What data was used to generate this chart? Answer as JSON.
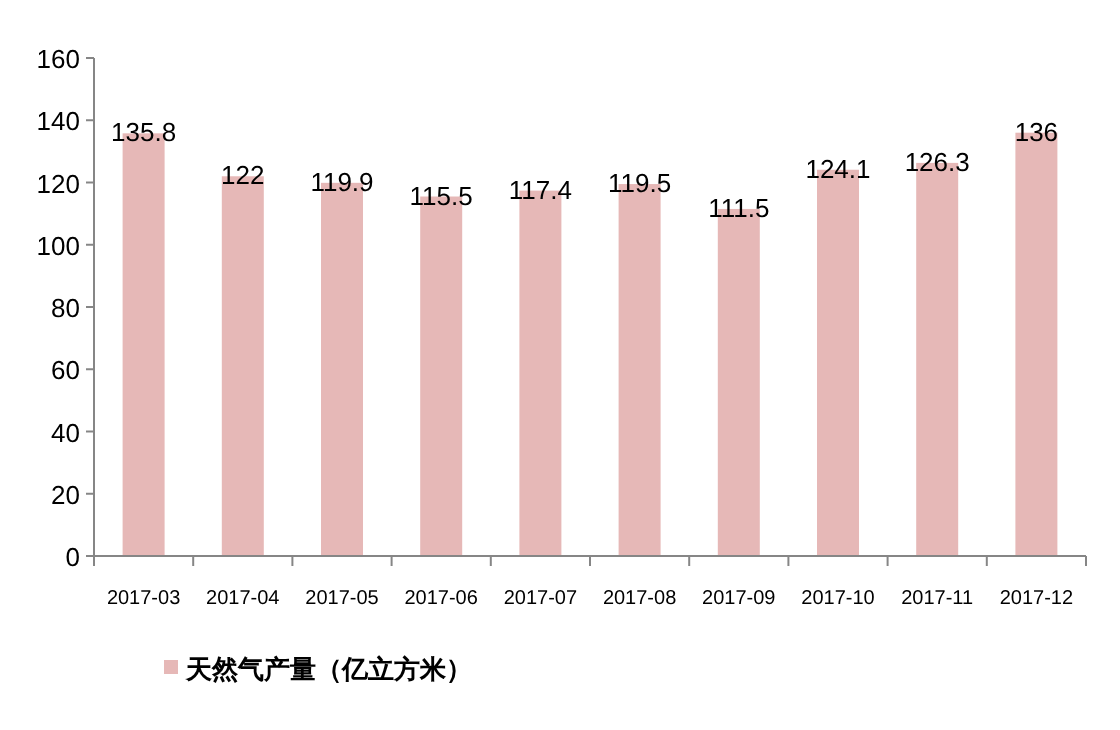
{
  "chart_data": {
    "type": "bar",
    "categories": [
      "2017-03",
      "2017-04",
      "2017-05",
      "2017-06",
      "2017-07",
      "2017-08",
      "2017-09",
      "2017-10",
      "2017-11",
      "2017-12"
    ],
    "series": [
      {
        "name": "天然气产量（亿立方米）",
        "color": "#e6b8b7",
        "values": [
          135.8,
          122,
          119.9,
          115.5,
          117.4,
          119.5,
          111.5,
          124.1,
          126.3,
          136
        ]
      }
    ],
    "ylim": [
      0,
      160
    ],
    "yticks": [
      0,
      20,
      40,
      60,
      80,
      100,
      120,
      140,
      160
    ],
    "data_labels": true,
    "legend": "bottom left",
    "grid": false
  }
}
